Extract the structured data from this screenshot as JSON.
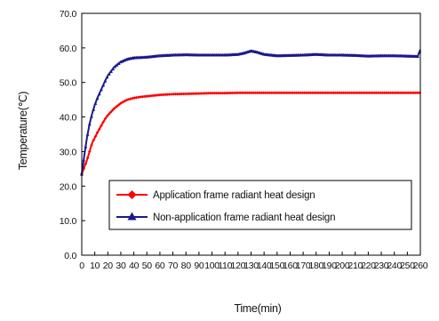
{
  "chart_data": {
    "type": "line",
    "xlabel": "Time(min)",
    "ylabel": "Temperature(℃)",
    "xlim": [
      0,
      260
    ],
    "ylim": [
      0,
      70
    ],
    "x_ticks": [
      "0",
      "10",
      "20",
      "30",
      "40",
      "50",
      "60",
      "70",
      "80",
      "90",
      "100",
      "110",
      "120",
      "130",
      "140",
      "150",
      "160",
      "170",
      "180",
      "190",
      "200",
      "210",
      "220",
      "230",
      "240",
      "250",
      "260"
    ],
    "y_ticks": [
      "0.0",
      "10.0",
      "20.0",
      "30.0",
      "40.0",
      "50.0",
      "60.0",
      "70.0"
    ],
    "grid": false,
    "legend_position": "bottom-center",
    "series": [
      {
        "name": "Application frame  radiant heat design",
        "color": "#ff0000",
        "marker": "diamond",
        "x": [
          0,
          2,
          4,
          6,
          8,
          10,
          12,
          15,
          18,
          20,
          25,
          30,
          35,
          40,
          45,
          50,
          55,
          60,
          70,
          80,
          90,
          100,
          110,
          120,
          130,
          140,
          150,
          160,
          170,
          180,
          190,
          200,
          210,
          220,
          230,
          240,
          250,
          260
        ],
        "y": [
          23.5,
          25.5,
          27.5,
          30.0,
          32.5,
          34.0,
          35.5,
          37.5,
          39.5,
          40.5,
          42.5,
          44.0,
          45.0,
          45.5,
          45.8,
          46.0,
          46.2,
          46.4,
          46.6,
          46.7,
          46.8,
          46.9,
          46.9,
          47.0,
          47.0,
          47.0,
          47.0,
          47.0,
          47.0,
          47.0,
          47.0,
          47.0,
          47.0,
          47.0,
          47.0,
          47.0,
          47.0,
          47.0
        ]
      },
      {
        "name": "Non-application frame  radiant heat design",
        "color": "#1a1a8c",
        "marker": "triangle",
        "x": [
          0,
          2,
          4,
          6,
          8,
          10,
          12,
          15,
          18,
          20,
          25,
          30,
          35,
          40,
          45,
          50,
          55,
          60,
          70,
          80,
          90,
          100,
          110,
          120,
          125,
          130,
          135,
          140,
          150,
          160,
          170,
          180,
          190,
          200,
          210,
          220,
          230,
          240,
          250,
          258,
          260
        ],
        "y": [
          23.5,
          29.0,
          34.0,
          38.0,
          41.0,
          43.5,
          45.5,
          48.0,
          50.5,
          52.0,
          54.5,
          56.0,
          56.8,
          57.2,
          57.3,
          57.4,
          57.6,
          57.8,
          58.0,
          58.1,
          58.0,
          58.0,
          58.0,
          58.2,
          58.6,
          59.2,
          58.8,
          58.2,
          57.8,
          57.9,
          58.0,
          58.2,
          58.0,
          58.0,
          57.9,
          57.7,
          57.8,
          57.8,
          57.7,
          57.6,
          59.5
        ]
      }
    ]
  }
}
